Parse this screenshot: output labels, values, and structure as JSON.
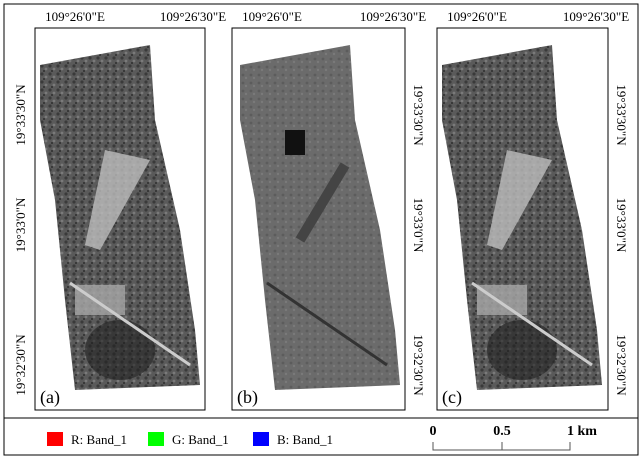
{
  "panels": [
    {
      "label": "(a)",
      "top_labels": [
        "109°26'0\"E",
        "109°26'30\"E"
      ],
      "side_labels": [
        "19°33'30\"N",
        "19°33'0\"N",
        "19°32'30\"N"
      ]
    },
    {
      "label": "(b)",
      "top_labels": [
        "109°26'0\"E",
        "109°26'30\"E"
      ],
      "side_labels": [
        "19°33'30\"N",
        "19°33'0\"N",
        "19°32'30\"N"
      ]
    },
    {
      "label": "(c)",
      "top_labels": [
        "109°26'0\"E",
        "109°26'30\"E"
      ],
      "side_labels": [
        "19°33'30\"N",
        "19°33'0\"N",
        "19°32'30\"N"
      ]
    }
  ],
  "legend": [
    {
      "label": "R: Band_1",
      "color": "#ff0000"
    },
    {
      "label": "G: Band_1",
      "color": "#00ff00"
    },
    {
      "label": "B: Band_1",
      "color": "#0000ff"
    }
  ],
  "scale_bar": {
    "ticks": [
      "0",
      "0.5",
      "1 km"
    ]
  }
}
